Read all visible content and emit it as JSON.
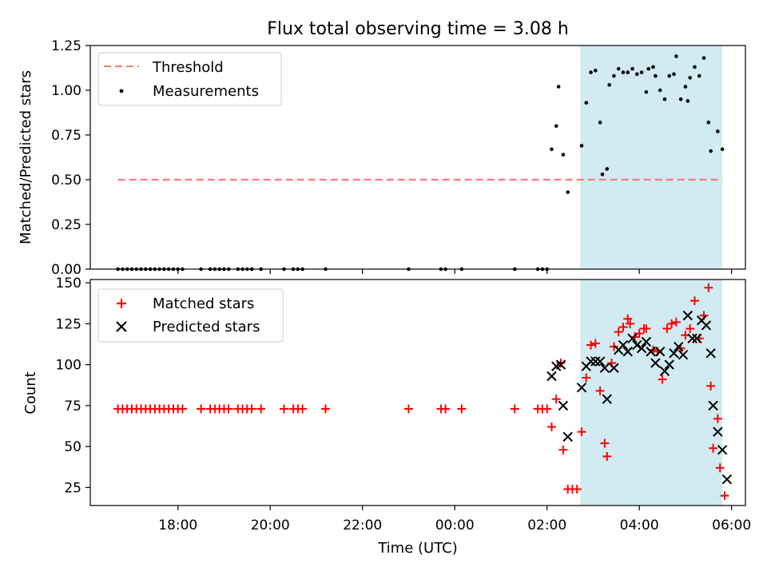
{
  "figure_title": "Flux total observing time = 3.08 h",
  "chart_data": [
    {
      "type": "scatter",
      "panel": "top",
      "ylabel": "Matched/Predicted stars",
      "xlabel": "",
      "x_unit": "hours (UTC, continuing past midnight)",
      "xlim": [
        16.1,
        30.3
      ],
      "ylim": [
        0,
        1.25
      ],
      "yticks": [
        0.0,
        0.25,
        0.5,
        0.75,
        1.0,
        1.25
      ],
      "ytick_labels": [
        "0.00",
        "0.25",
        "0.50",
        "0.75",
        "1.00",
        "1.25"
      ],
      "xticks_shown_labels": false,
      "legend": {
        "placement": "top-left",
        "entries": [
          "Threshold",
          "Measurements"
        ]
      },
      "shaded_region": {
        "x0": 26.72,
        "x1": 29.8,
        "color": "#add8e6",
        "opacity": 0.55
      },
      "threshold": {
        "name": "Threshold",
        "y": 0.5,
        "x0": 16.7,
        "x1": 29.8,
        "color": "#ff7a7a"
      },
      "series": [
        {
          "name": "Measurements",
          "color": "#000000",
          "marker": "dot",
          "points": [
            [
              16.7,
              0
            ],
            [
              16.8,
              0
            ],
            [
              16.9,
              0
            ],
            [
              17.0,
              0
            ],
            [
              17.1,
              0
            ],
            [
              17.2,
              0
            ],
            [
              17.3,
              0
            ],
            [
              17.4,
              0
            ],
            [
              17.5,
              0
            ],
            [
              17.6,
              0
            ],
            [
              17.7,
              0
            ],
            [
              17.8,
              0
            ],
            [
              17.9,
              0
            ],
            [
              18.0,
              0
            ],
            [
              18.1,
              0
            ],
            [
              18.5,
              0
            ],
            [
              18.7,
              0
            ],
            [
              18.8,
              0
            ],
            [
              18.9,
              0
            ],
            [
              19.0,
              0
            ],
            [
              19.1,
              0
            ],
            [
              19.3,
              0
            ],
            [
              19.4,
              0
            ],
            [
              19.5,
              0
            ],
            [
              19.6,
              0
            ],
            [
              19.8,
              0
            ],
            [
              20.3,
              0
            ],
            [
              20.5,
              0
            ],
            [
              20.6,
              0
            ],
            [
              20.7,
              0
            ],
            [
              21.2,
              0
            ],
            [
              23.0,
              0
            ],
            [
              23.7,
              0
            ],
            [
              23.8,
              0
            ],
            [
              24.15,
              0
            ],
            [
              25.3,
              0
            ],
            [
              25.8,
              0
            ],
            [
              25.9,
              0
            ],
            [
              26.0,
              0
            ],
            [
              26.1,
              0.67
            ],
            [
              26.2,
              0.8
            ],
            [
              26.25,
              1.02
            ],
            [
              26.35,
              0.64
            ],
            [
              26.45,
              0.43
            ],
            [
              26.75,
              0.69
            ],
            [
              26.85,
              0.93
            ],
            [
              26.95,
              1.1
            ],
            [
              27.05,
              1.11
            ],
            [
              27.15,
              0.82
            ],
            [
              27.2,
              0.53
            ],
            [
              27.3,
              0.56
            ],
            [
              27.35,
              1.03
            ],
            [
              27.45,
              1.08
            ],
            [
              27.55,
              1.12
            ],
            [
              27.65,
              1.1
            ],
            [
              27.75,
              1.1
            ],
            [
              27.85,
              1.12
            ],
            [
              27.95,
              1.09
            ],
            [
              28.05,
              1.1
            ],
            [
              28.15,
              0.99
            ],
            [
              28.2,
              1.12
            ],
            [
              28.3,
              1.13
            ],
            [
              28.35,
              1.08
            ],
            [
              28.45,
              1.0
            ],
            [
              28.55,
              0.95
            ],
            [
              28.65,
              1.08
            ],
            [
              28.75,
              1.09
            ],
            [
              28.8,
              1.19
            ],
            [
              28.9,
              0.95
            ],
            [
              29.0,
              1.02
            ],
            [
              29.05,
              0.94
            ],
            [
              29.1,
              1.07
            ],
            [
              29.2,
              1.13
            ],
            [
              29.3,
              1.08
            ],
            [
              29.4,
              1.18
            ],
            [
              29.5,
              0.82
            ],
            [
              29.55,
              0.66
            ],
            [
              29.7,
              0.77
            ],
            [
              29.8,
              0.67
            ]
          ]
        }
      ]
    },
    {
      "type": "scatter",
      "panel": "bottom",
      "ylabel": "Count",
      "xlabel": "Time (UTC)",
      "x_unit": "hours (UTC, continuing past midnight)",
      "xlim": [
        16.1,
        30.3
      ],
      "ylim": [
        14,
        152
      ],
      "yticks": [
        25,
        50,
        75,
        100,
        125,
        150
      ],
      "ytick_labels": [
        "25",
        "50",
        "75",
        "100",
        "125",
        "150"
      ],
      "xticks": [
        18,
        20,
        22,
        24,
        26,
        28,
        30
      ],
      "xtick_labels": [
        "18:00",
        "20:00",
        "22:00",
        "00:00",
        "02:00",
        "04:00",
        "06:00"
      ],
      "legend": {
        "placement": "top-left",
        "entries": [
          "Matched stars",
          "Predicted stars"
        ]
      },
      "shaded_region": {
        "x0": 26.72,
        "x1": 29.8,
        "color": "#add8e6",
        "opacity": 0.55
      },
      "series": [
        {
          "name": "Matched stars",
          "color": "#ff0000",
          "marker": "plus",
          "points": [
            [
              16.7,
              73
            ],
            [
              16.8,
              73
            ],
            [
              16.9,
              73
            ],
            [
              17.0,
              73
            ],
            [
              17.1,
              73
            ],
            [
              17.2,
              73
            ],
            [
              17.3,
              73
            ],
            [
              17.4,
              73
            ],
            [
              17.5,
              73
            ],
            [
              17.6,
              73
            ],
            [
              17.7,
              73
            ],
            [
              17.8,
              73
            ],
            [
              17.9,
              73
            ],
            [
              18.0,
              73
            ],
            [
              18.1,
              73
            ],
            [
              18.5,
              73
            ],
            [
              18.7,
              73
            ],
            [
              18.8,
              73
            ],
            [
              18.9,
              73
            ],
            [
              19.0,
              73
            ],
            [
              19.1,
              73
            ],
            [
              19.3,
              73
            ],
            [
              19.4,
              73
            ],
            [
              19.5,
              73
            ],
            [
              19.6,
              73
            ],
            [
              19.8,
              73
            ],
            [
              20.3,
              73
            ],
            [
              20.5,
              73
            ],
            [
              20.6,
              73
            ],
            [
              20.7,
              73
            ],
            [
              21.2,
              73
            ],
            [
              23.0,
              73
            ],
            [
              23.7,
              73
            ],
            [
              23.8,
              73
            ],
            [
              24.15,
              73
            ],
            [
              25.3,
              73
            ],
            [
              25.8,
              73
            ],
            [
              25.9,
              73
            ],
            [
              26.0,
              73
            ],
            [
              26.1,
              62
            ],
            [
              26.2,
              79
            ],
            [
              26.3,
              101
            ],
            [
              26.35,
              48
            ],
            [
              26.45,
              24
            ],
            [
              26.55,
              24
            ],
            [
              26.65,
              24
            ],
            [
              26.75,
              59
            ],
            [
              26.85,
              92
            ],
            [
              26.95,
              112
            ],
            [
              27.05,
              113
            ],
            [
              27.15,
              84
            ],
            [
              27.25,
              52
            ],
            [
              27.3,
              44
            ],
            [
              27.4,
              101
            ],
            [
              27.45,
              111
            ],
            [
              27.55,
              120
            ],
            [
              27.65,
              123
            ],
            [
              27.75,
              128
            ],
            [
              27.8,
              125
            ],
            [
              27.9,
              117
            ],
            [
              28.0,
              119
            ],
            [
              28.1,
              122
            ],
            [
              28.15,
              122
            ],
            [
              28.3,
              109
            ],
            [
              28.4,
              108
            ],
            [
              28.5,
              91
            ],
            [
              28.6,
              122
            ],
            [
              28.7,
              125
            ],
            [
              28.8,
              126
            ],
            [
              28.9,
              110
            ],
            [
              29.0,
              118
            ],
            [
              29.1,
              122
            ],
            [
              29.2,
              139
            ],
            [
              29.3,
              116
            ],
            [
              29.4,
              130
            ],
            [
              29.5,
              147
            ],
            [
              29.55,
              87
            ],
            [
              29.6,
              49
            ],
            [
              29.7,
              67
            ],
            [
              29.75,
              37
            ],
            [
              29.85,
              20
            ]
          ]
        },
        {
          "name": "Predicted stars",
          "color": "#000000",
          "marker": "x",
          "points": [
            [
              26.1,
              93
            ],
            [
              26.2,
              99
            ],
            [
              26.3,
              100
            ],
            [
              26.35,
              75
            ],
            [
              26.45,
              56
            ],
            [
              26.75,
              86
            ],
            [
              26.85,
              99
            ],
            [
              26.95,
              102
            ],
            [
              27.05,
              102
            ],
            [
              27.15,
              102
            ],
            [
              27.25,
              98
            ],
            [
              27.3,
              79
            ],
            [
              27.45,
              98
            ],
            [
              27.55,
              109
            ],
            [
              27.65,
              112
            ],
            [
              27.75,
              108
            ],
            [
              27.85,
              116
            ],
            [
              27.95,
              112
            ],
            [
              28.05,
              110
            ],
            [
              28.15,
              114
            ],
            [
              28.25,
              108
            ],
            [
              28.35,
              101
            ],
            [
              28.45,
              108
            ],
            [
              28.55,
              96
            ],
            [
              28.65,
              100
            ],
            [
              28.75,
              107
            ],
            [
              28.85,
              111
            ],
            [
              28.95,
              106
            ],
            [
              29.05,
              130
            ],
            [
              29.15,
              116
            ],
            [
              29.25,
              116
            ],
            [
              29.35,
              127
            ],
            [
              29.45,
              124
            ],
            [
              29.55,
              107
            ],
            [
              29.6,
              75
            ],
            [
              29.7,
              59
            ],
            [
              29.8,
              48
            ],
            [
              29.9,
              30
            ]
          ]
        }
      ]
    }
  ]
}
